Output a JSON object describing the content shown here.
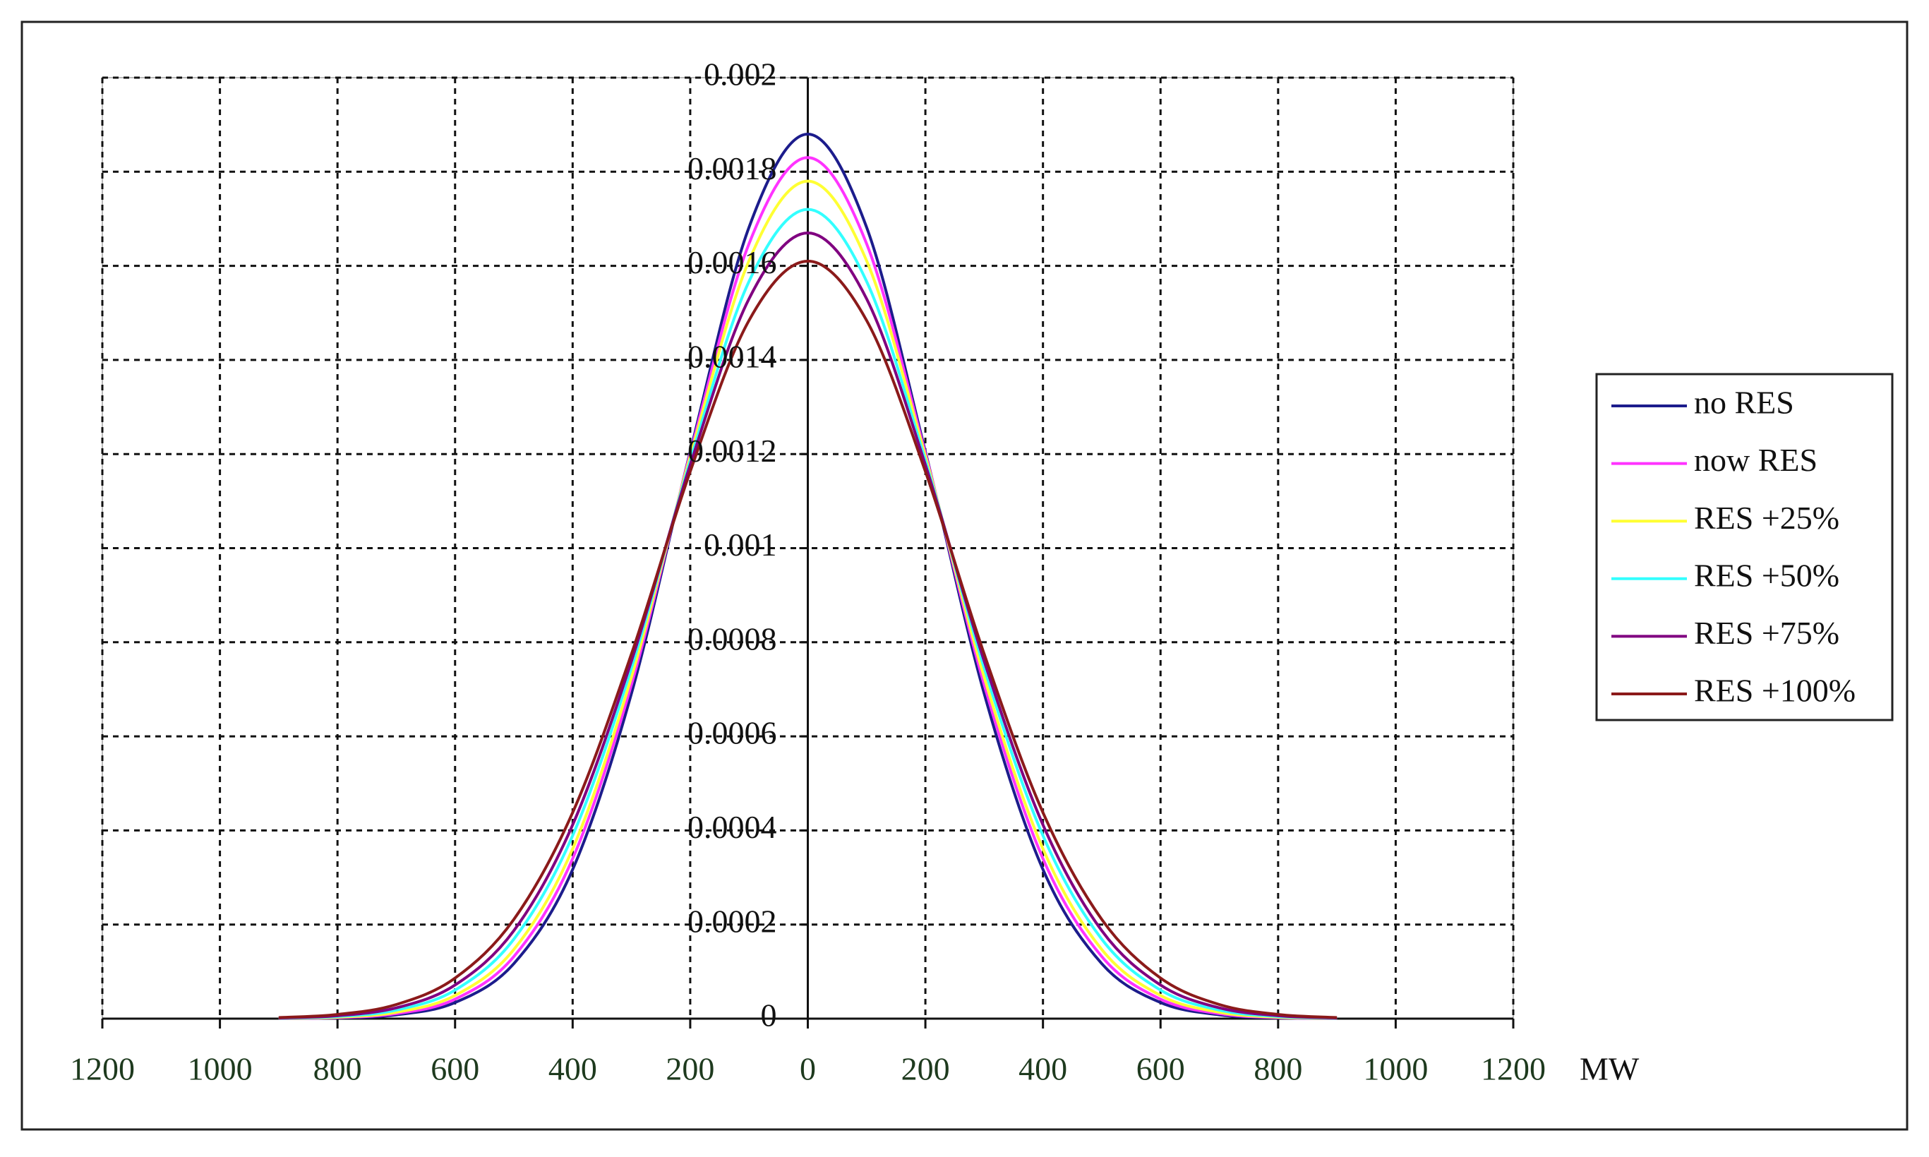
{
  "chart_data": {
    "type": "line",
    "x": [
      -900,
      -800,
      -700,
      -600,
      -500,
      -400,
      -300,
      -200,
      -100,
      0,
      100,
      200,
      300,
      400,
      500,
      600,
      700,
      800,
      900
    ],
    "series": [
      {
        "name": "no RES",
        "color": "#1c1c8c",
        "values": [
          2e-07,
          1.5e-06,
          8.1e-06,
          3.43e-05,
          0.000117,
          0.000317,
          0.000691,
          0.001205,
          0.001682,
          0.00188,
          0.001682,
          0.001205,
          0.000691,
          0.000317,
          0.000117,
          3.43e-05,
          8.1e-06,
          1.5e-06,
          2e-07
        ]
      },
      {
        "name": "now RES",
        "color": "#ff33ff",
        "values": [
          4e-07,
          2.2e-06,
          1.06e-05,
          4.14e-05,
          0.000132,
          0.00034,
          0.00071,
          0.001201,
          0.001647,
          0.00183,
          0.001647,
          0.001201,
          0.00071,
          0.00034,
          0.000132,
          4.14e-05,
          1.06e-05,
          2.2e-06,
          4e-07
        ]
      },
      {
        "name": "RES +25%",
        "color": "#ffff33",
        "values": [
          6e-07,
          3e-06,
          1.35e-05,
          4.93e-05,
          0.000147,
          0.000361,
          0.000726,
          0.001195,
          0.001611,
          0.00178,
          0.001611,
          0.001195,
          0.000726,
          0.000361,
          0.000147,
          4.93e-05,
          1.35e-05,
          3e-06,
          6e-07
        ]
      },
      {
        "name": "RES +50%",
        "color": "#33ffff",
        "values": [
          9e-07,
          4.5e-06,
          1.81e-05,
          6.07e-05,
          0.000169,
          0.000389,
          0.000745,
          0.001186,
          0.001567,
          0.00172,
          0.001567,
          0.001186,
          0.000745,
          0.000389,
          0.000169,
          6.07e-05,
          1.81e-05,
          4.5e-06,
          9e-07
        ]
      },
      {
        "name": "RES +75%",
        "color": "#800080",
        "values": [
          1.4e-06,
          6.2e-06,
          2.29e-05,
          7.15e-05,
          0.000187,
          0.000412,
          0.00076,
          0.001177,
          0.00153,
          0.00167,
          0.00153,
          0.001177,
          0.00076,
          0.000412,
          0.000187,
          7.15e-05,
          2.29e-05,
          6.2e-06,
          1.4e-06
        ]
      },
      {
        "name": "RES +100%",
        "color": "#8b1a1a",
        "values": [
          2.2e-06,
          8.9e-06,
          3e-05,
          8.63e-05,
          0.000211,
          0.000438,
          0.000775,
          0.001163,
          0.001484,
          0.00161,
          0.001484,
          0.001163,
          0.000775,
          0.000438,
          0.000211,
          8.63e-05,
          3e-05,
          8.9e-06,
          2.2e-06
        ]
      }
    ],
    "x_label": "MW",
    "xlim": [
      -1200,
      1200
    ],
    "xticks": [
      {
        "value": -1200,
        "label": "1200"
      },
      {
        "value": -1000,
        "label": "1000"
      },
      {
        "value": -800,
        "label": "800"
      },
      {
        "value": -600,
        "label": "600"
      },
      {
        "value": -400,
        "label": "400"
      },
      {
        "value": -200,
        "label": "200"
      },
      0,
      200,
      400,
      600,
      800,
      1000,
      1200
    ],
    "ylim": [
      0,
      0.002
    ],
    "yticks": [
      0,
      0.0002,
      0.0004,
      0.0006,
      0.0008,
      0.001,
      0.0012,
      0.0014,
      0.0016,
      0.0018,
      0.002
    ],
    "grid": true,
    "legend": "right"
  }
}
